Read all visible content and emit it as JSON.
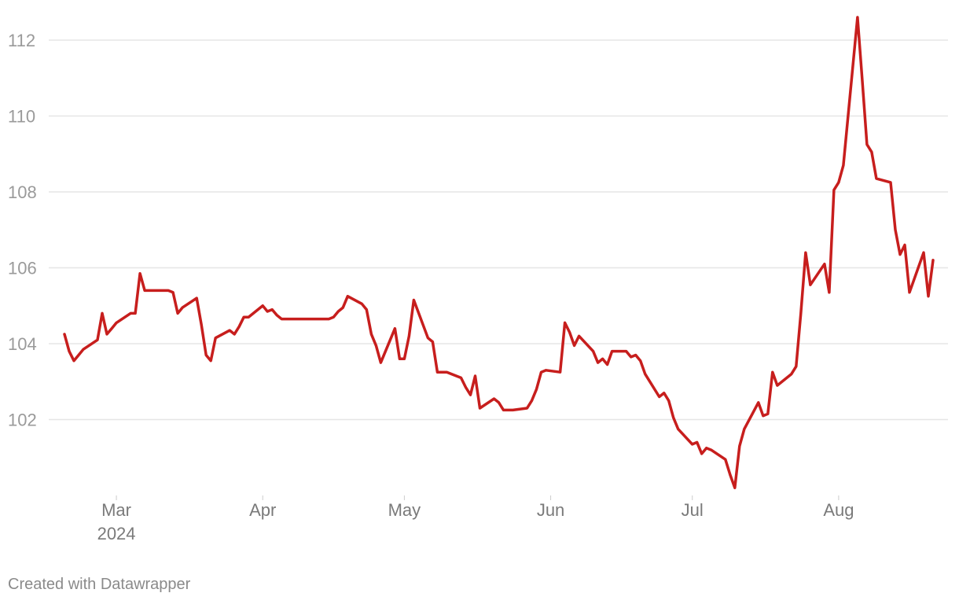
{
  "chart_data": {
    "type": "line",
    "title": "",
    "xlabel": "",
    "ylabel": "",
    "grid": true,
    "legend": "none",
    "line_color": "#c71e1d",
    "ylim": [
      100,
      112.6
    ],
    "yticks": [
      "102",
      "104",
      "106",
      "108",
      "110",
      "112"
    ],
    "xticks": [
      {
        "date": "2024-03-01",
        "label": "Mar",
        "sub": "2024"
      },
      {
        "date": "2024-04-01",
        "label": "Apr",
        "sub": ""
      },
      {
        "date": "2024-05-01",
        "label": "May",
        "sub": ""
      },
      {
        "date": "2024-06-01",
        "label": "Jun",
        "sub": ""
      },
      {
        "date": "2024-07-01",
        "label": "Jul",
        "sub": ""
      },
      {
        "date": "2024-08-01",
        "label": "Aug",
        "sub": ""
      }
    ],
    "series": [
      {
        "points": [
          [
            "2024-02-19",
            104.25
          ],
          [
            "2024-02-20",
            103.8
          ],
          [
            "2024-02-21",
            103.55
          ],
          [
            "2024-02-22",
            103.7
          ],
          [
            "2024-02-23",
            103.85
          ],
          [
            "2024-02-26",
            104.1
          ],
          [
            "2024-02-27",
            104.8
          ],
          [
            "2024-02-28",
            104.25
          ],
          [
            "2024-02-29",
            104.4
          ],
          [
            "2024-03-01",
            104.55
          ],
          [
            "2024-03-04",
            104.8
          ],
          [
            "2024-03-05",
            104.8
          ],
          [
            "2024-03-06",
            105.85
          ],
          [
            "2024-03-07",
            105.4
          ],
          [
            "2024-03-08",
            105.4
          ],
          [
            "2024-03-11",
            105.4
          ],
          [
            "2024-03-12",
            105.4
          ],
          [
            "2024-03-13",
            105.35
          ],
          [
            "2024-03-14",
            104.8
          ],
          [
            "2024-03-15",
            104.95
          ],
          [
            "2024-03-18",
            105.2
          ],
          [
            "2024-03-19",
            104.5
          ],
          [
            "2024-03-20",
            103.7
          ],
          [
            "2024-03-21",
            103.55
          ],
          [
            "2024-03-22",
            104.15
          ],
          [
            "2024-03-25",
            104.35
          ],
          [
            "2024-03-26",
            104.25
          ],
          [
            "2024-03-27",
            104.45
          ],
          [
            "2024-03-28",
            104.7
          ],
          [
            "2024-03-29",
            104.7
          ],
          [
            "2024-04-01",
            105.0
          ],
          [
            "2024-04-02",
            104.85
          ],
          [
            "2024-04-03",
            104.9
          ],
          [
            "2024-04-04",
            104.75
          ],
          [
            "2024-04-05",
            104.65
          ],
          [
            "2024-04-08",
            104.65
          ],
          [
            "2024-04-09",
            104.65
          ],
          [
            "2024-04-10",
            104.65
          ],
          [
            "2024-04-11",
            104.65
          ],
          [
            "2024-04-12",
            104.65
          ],
          [
            "2024-04-15",
            104.65
          ],
          [
            "2024-04-16",
            104.7
          ],
          [
            "2024-04-17",
            104.85
          ],
          [
            "2024-04-18",
            104.95
          ],
          [
            "2024-04-19",
            105.25
          ],
          [
            "2024-04-22",
            105.05
          ],
          [
            "2024-04-23",
            104.9
          ],
          [
            "2024-04-24",
            104.25
          ],
          [
            "2024-04-25",
            103.95
          ],
          [
            "2024-04-26",
            103.5
          ],
          [
            "2024-04-29",
            104.4
          ],
          [
            "2024-04-30",
            103.6
          ],
          [
            "2024-05-01",
            103.6
          ],
          [
            "2024-05-02",
            104.2
          ],
          [
            "2024-05-03",
            105.15
          ],
          [
            "2024-05-06",
            104.15
          ],
          [
            "2024-05-07",
            104.05
          ],
          [
            "2024-05-08",
            103.25
          ],
          [
            "2024-05-09",
            103.25
          ],
          [
            "2024-05-10",
            103.25
          ],
          [
            "2024-05-13",
            103.1
          ],
          [
            "2024-05-14",
            102.85
          ],
          [
            "2024-05-15",
            102.65
          ],
          [
            "2024-05-16",
            103.15
          ],
          [
            "2024-05-17",
            102.3
          ],
          [
            "2024-05-20",
            102.55
          ],
          [
            "2024-05-21",
            102.45
          ],
          [
            "2024-05-22",
            102.25
          ],
          [
            "2024-05-23",
            102.25
          ],
          [
            "2024-05-24",
            102.25
          ],
          [
            "2024-05-27",
            102.3
          ],
          [
            "2024-05-28",
            102.5
          ],
          [
            "2024-05-29",
            102.8
          ],
          [
            "2024-05-30",
            103.25
          ],
          [
            "2024-05-31",
            103.3
          ],
          [
            "2024-06-03",
            103.25
          ],
          [
            "2024-06-04",
            104.55
          ],
          [
            "2024-06-05",
            104.3
          ],
          [
            "2024-06-06",
            103.95
          ],
          [
            "2024-06-07",
            104.2
          ],
          [
            "2024-06-10",
            103.8
          ],
          [
            "2024-06-11",
            103.5
          ],
          [
            "2024-06-12",
            103.6
          ],
          [
            "2024-06-13",
            103.45
          ],
          [
            "2024-06-14",
            103.8
          ],
          [
            "2024-06-17",
            103.8
          ],
          [
            "2024-06-18",
            103.65
          ],
          [
            "2024-06-19",
            103.7
          ],
          [
            "2024-06-20",
            103.55
          ],
          [
            "2024-06-21",
            103.2
          ],
          [
            "2024-06-24",
            102.6
          ],
          [
            "2024-06-25",
            102.7
          ],
          [
            "2024-06-26",
            102.5
          ],
          [
            "2024-06-27",
            102.05
          ],
          [
            "2024-06-28",
            101.75
          ],
          [
            "2024-07-01",
            101.35
          ],
          [
            "2024-07-02",
            101.4
          ],
          [
            "2024-07-03",
            101.1
          ],
          [
            "2024-07-04",
            101.25
          ],
          [
            "2024-07-05",
            101.2
          ],
          [
            "2024-07-08",
            100.95
          ],
          [
            "2024-07-09",
            100.55
          ],
          [
            "2024-07-10",
            100.2
          ],
          [
            "2024-07-11",
            101.3
          ],
          [
            "2024-07-12",
            101.75
          ],
          [
            "2024-07-15",
            102.45
          ],
          [
            "2024-07-16",
            102.1
          ],
          [
            "2024-07-17",
            102.15
          ],
          [
            "2024-07-18",
            103.25
          ],
          [
            "2024-07-19",
            102.9
          ],
          [
            "2024-07-22",
            103.2
          ],
          [
            "2024-07-23",
            103.4
          ],
          [
            "2024-07-24",
            104.8
          ],
          [
            "2024-07-25",
            106.4
          ],
          [
            "2024-07-26",
            105.55
          ],
          [
            "2024-07-29",
            106.1
          ],
          [
            "2024-07-30",
            105.35
          ],
          [
            "2024-07-31",
            108.05
          ],
          [
            "2024-08-01",
            108.25
          ],
          [
            "2024-08-02",
            108.7
          ],
          [
            "2024-08-05",
            112.6
          ],
          [
            "2024-08-06",
            110.95
          ],
          [
            "2024-08-07",
            109.25
          ],
          [
            "2024-08-08",
            109.05
          ],
          [
            "2024-08-09",
            108.35
          ],
          [
            "2024-08-12",
            108.25
          ],
          [
            "2024-08-13",
            107.0
          ],
          [
            "2024-08-14",
            106.35
          ],
          [
            "2024-08-15",
            106.6
          ],
          [
            "2024-08-16",
            105.35
          ],
          [
            "2024-08-19",
            106.4
          ],
          [
            "2024-08-20",
            105.25
          ],
          [
            "2024-08-21",
            106.2
          ]
        ]
      }
    ]
  },
  "footer": {
    "credit": "Created with Datawrapper"
  }
}
